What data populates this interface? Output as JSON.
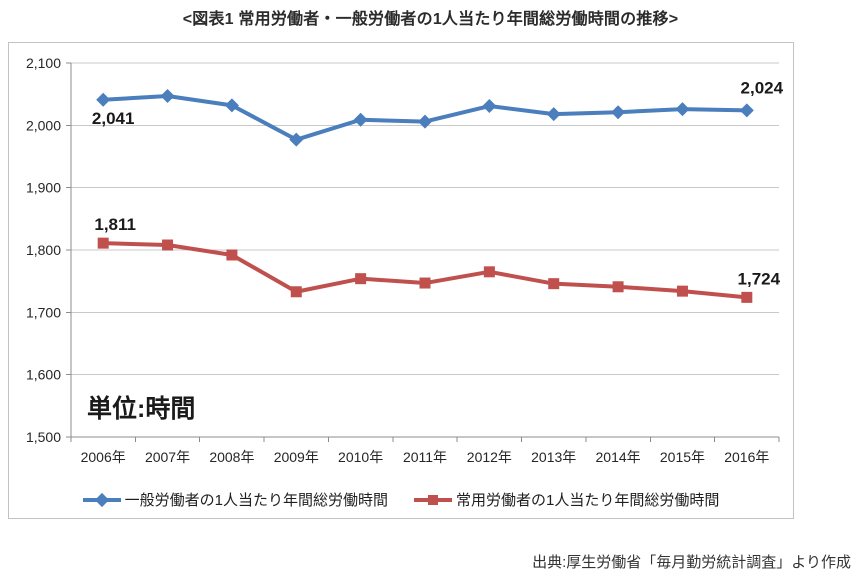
{
  "page": {
    "title": "<図表1 常用労働者・一般労働者の1人当たり年間総労働時間の推移>",
    "source_note": "出典:厚生労働省「毎月勤労統計調査」より作成"
  },
  "chart_data": {
    "type": "line",
    "title": "常用労働者・一般労働者の1人当たり年間総労働時間の推移",
    "unit_label": "単位:時間",
    "categories": [
      "2006年",
      "2007年",
      "2008年",
      "2009年",
      "2010年",
      "2011年",
      "2012年",
      "2013年",
      "2014年",
      "2015年",
      "2016年"
    ],
    "series": [
      {
        "name": "一般労働者の1人当たり年間総労働時間",
        "color": "#4A7EBC",
        "marker": "diamond",
        "values": [
          2041,
          2047,
          2032,
          1977,
          2009,
          2006,
          2031,
          2018,
          2021,
          2026,
          2024
        ],
        "point_labels": [
          {
            "index": 0,
            "text": "2,041",
            "position": "below-right"
          },
          {
            "index": 10,
            "text": "2,024",
            "position": "above-right-far"
          }
        ]
      },
      {
        "name": "常用労働者の1人当たり年間総労働時間",
        "color": "#C0504D",
        "marker": "square",
        "values": [
          1811,
          1808,
          1792,
          1733,
          1754,
          1747,
          1765,
          1746,
          1741,
          1734,
          1724
        ],
        "point_labels": [
          {
            "index": 0,
            "text": "1,811",
            "position": "above-right"
          },
          {
            "index": 10,
            "text": "1,724",
            "position": "above-right"
          }
        ]
      }
    ],
    "ylim": [
      1500,
      2100
    ],
    "ytick_step": 100,
    "ytick_labels": [
      "2,100",
      "2,000",
      "1,900",
      "1,800",
      "1,700",
      "1,600",
      "1,500"
    ],
    "grid": true,
    "legend_position": "bottom",
    "colors": {
      "grid": "#c9c9c9",
      "axis": "#8c8c8c",
      "tick_text": "#262626"
    }
  }
}
